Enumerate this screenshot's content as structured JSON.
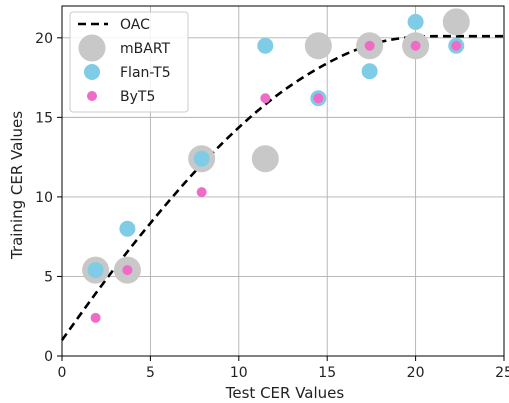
{
  "chart_data": {
    "type": "scatter",
    "title": "",
    "xlabel": "Test CER Values",
    "ylabel": "Training CER Values",
    "xlim": [
      0,
      25
    ],
    "ylim": [
      0,
      22
    ],
    "xticks": [
      0,
      5,
      10,
      15,
      20,
      25
    ],
    "yticks": [
      0,
      5,
      10,
      15,
      20
    ],
    "grid": true,
    "legend_position": "top-left",
    "series": [
      {
        "name": "OAC",
        "kind": "line",
        "style": "dashed",
        "color": "#000000",
        "points": [
          [
            0,
            1.0
          ],
          [
            2,
            4.1
          ],
          [
            4,
            7.0
          ],
          [
            6,
            9.7
          ],
          [
            8,
            12.2
          ],
          [
            10,
            14.4
          ],
          [
            12,
            16.3
          ],
          [
            14,
            17.8
          ],
          [
            16,
            19.0
          ],
          [
            18,
            19.8
          ],
          [
            20,
            20.1
          ],
          [
            22,
            20.1
          ],
          [
            25,
            20.1
          ]
        ]
      },
      {
        "name": "mBART",
        "kind": "scatter",
        "color": "#c8c8c8",
        "marker": "large",
        "points": [
          [
            1.9,
            5.4
          ],
          [
            3.7,
            5.4
          ],
          [
            7.9,
            12.4
          ],
          [
            11.5,
            12.4
          ],
          [
            14.5,
            19.5
          ],
          [
            17.4,
            19.5
          ],
          [
            20.0,
            19.5
          ],
          [
            22.3,
            21.0
          ]
        ]
      },
      {
        "name": "Flan-T5",
        "kind": "scatter",
        "color": "#7ecce6",
        "marker": "medium",
        "points": [
          [
            1.9,
            5.4
          ],
          [
            3.7,
            8.0
          ],
          [
            7.9,
            12.4
          ],
          [
            11.5,
            19.5
          ],
          [
            14.5,
            16.2
          ],
          [
            17.4,
            17.9
          ],
          [
            20.0,
            21.0
          ],
          [
            22.3,
            19.5
          ]
        ]
      },
      {
        "name": "ByT5",
        "kind": "scatter",
        "color": "#f06ac8",
        "marker": "small",
        "points": [
          [
            1.9,
            2.4
          ],
          [
            3.7,
            5.4
          ],
          [
            7.9,
            10.3
          ],
          [
            11.5,
            16.2
          ],
          [
            14.5,
            16.2
          ],
          [
            17.4,
            19.5
          ],
          [
            20.0,
            19.5
          ],
          [
            22.3,
            19.5
          ]
        ]
      }
    ]
  }
}
